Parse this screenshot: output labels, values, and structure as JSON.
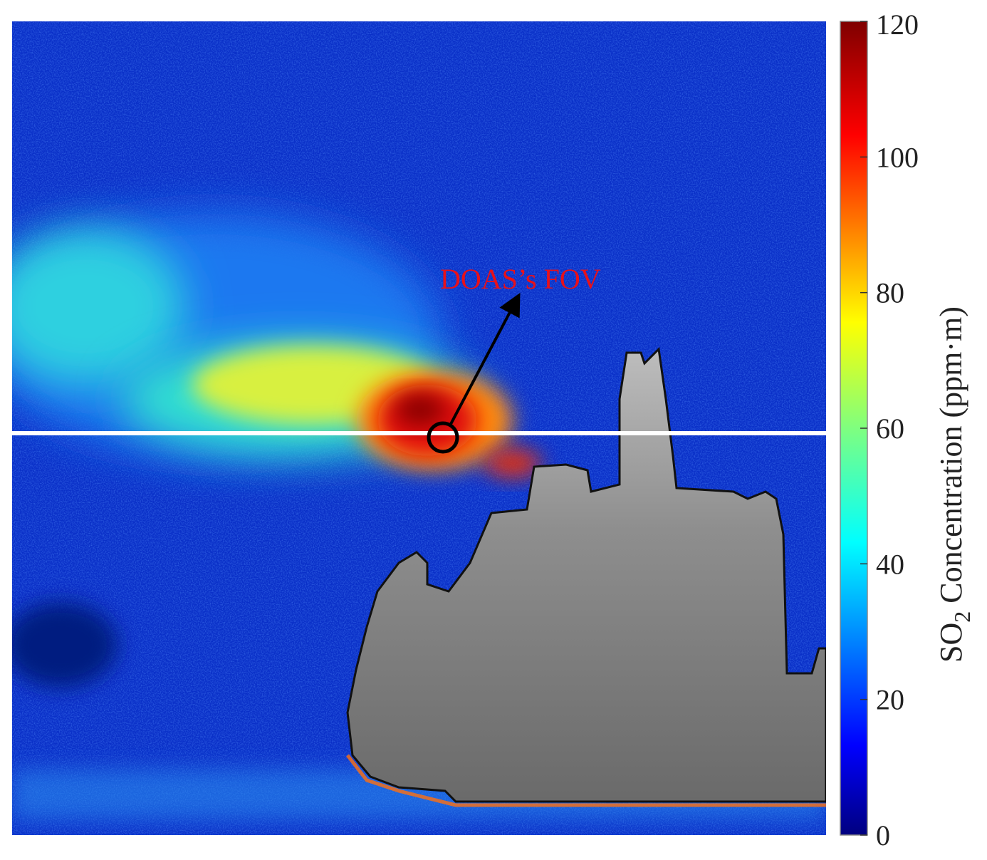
{
  "chart_data": {
    "type": "heatmap",
    "colormap": "jet",
    "colorbar": {
      "label_main": "SO",
      "label_sub": "2",
      "label_rest": " Concentration (ppm·m)",
      "range": [
        0,
        120
      ],
      "ticks": [
        0,
        20,
        40,
        60,
        80,
        100,
        120
      ],
      "tick_labels": [
        "0",
        "20",
        "40",
        "60",
        "80",
        "100",
        "120"
      ],
      "placement": "right"
    },
    "annotation": {
      "text": "DOAS’s FOV",
      "color": "#e8101a"
    },
    "horizontal_line_color": "#ffffff",
    "plume_peak_value": 120,
    "background_value": 10
  }
}
